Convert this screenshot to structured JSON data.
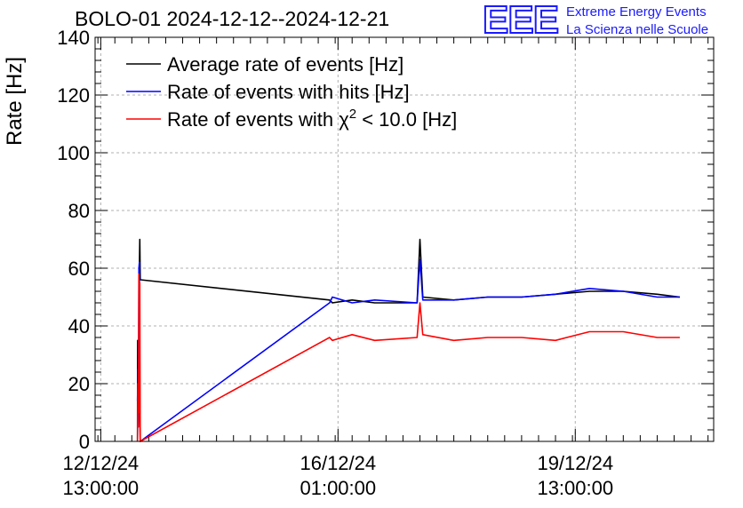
{
  "chart_data": {
    "type": "line",
    "title": "BOLO-01 2024-12-12--2024-12-21",
    "xlabel": "",
    "ylabel": "Rate [Hz]",
    "ylim": [
      0,
      140
    ],
    "y_ticks": [
      0,
      20,
      40,
      60,
      80,
      100,
      120,
      140
    ],
    "xlim": [
      "2024-12-12 11:00",
      "2024-12-21 14:00"
    ],
    "x_ticks": [
      {
        "x": "2024-12-12 13:00",
        "label1": "12/12/24",
        "label2": "13:00:00"
      },
      {
        "x": "2024-12-16 01:00",
        "label1": "16/12/24",
        "label2": "01:00:00"
      },
      {
        "x": "2024-12-19 13:00",
        "label1": "19/12/24",
        "label2": "13:00:00"
      }
    ],
    "grid": true,
    "legend_position": "top-left",
    "series": [
      {
        "name": "Average rate of events [Hz]",
        "color": "#000000",
        "points": [
          [
            "2024-12-13 02:00",
            0
          ],
          [
            "2024-12-13 02:05",
            35
          ],
          [
            "2024-12-13 02:10",
            5
          ],
          [
            "2024-12-13 02:20",
            30
          ],
          [
            "2024-12-13 02:30",
            12
          ],
          [
            "2024-12-13 02:40",
            60
          ],
          [
            "2024-12-13 02:50",
            70
          ],
          [
            "2024-12-13 03:00",
            56
          ],
          [
            "2024-12-15 22:00",
            49
          ],
          [
            "2024-12-15 23:00",
            48
          ],
          [
            "2024-12-16 06:00",
            49
          ],
          [
            "2024-12-16 14:00",
            48
          ],
          [
            "2024-12-17 05:00",
            48
          ],
          [
            "2024-12-17 06:00",
            70
          ],
          [
            "2024-12-17 07:00",
            50
          ],
          [
            "2024-12-17 18:00",
            49
          ],
          [
            "2024-12-18 06:00",
            50
          ],
          [
            "2024-12-18 18:00",
            50
          ],
          [
            "2024-12-19 06:00",
            51
          ],
          [
            "2024-12-19 18:00",
            52
          ],
          [
            "2024-12-20 06:00",
            52
          ],
          [
            "2024-12-20 18:00",
            51
          ],
          [
            "2024-12-21 02:00",
            50
          ]
        ]
      },
      {
        "name": "Rate of events with hits [Hz]",
        "color": "#0000ff",
        "points": [
          [
            "2024-12-13 02:00",
            14
          ],
          [
            "2024-12-13 02:10",
            25
          ],
          [
            "2024-12-13 02:20",
            11
          ],
          [
            "2024-12-13 02:30",
            60
          ],
          [
            "2024-12-13 02:40",
            62
          ],
          [
            "2024-12-13 02:45",
            12
          ],
          [
            "2024-12-13 03:00",
            0
          ],
          [
            "2024-12-15 22:00",
            48
          ],
          [
            "2024-12-15 23:00",
            50
          ],
          [
            "2024-12-16 06:00",
            48
          ],
          [
            "2024-12-16 14:00",
            49
          ],
          [
            "2024-12-17 05:00",
            48
          ],
          [
            "2024-12-17 06:00",
            63
          ],
          [
            "2024-12-17 07:00",
            49
          ],
          [
            "2024-12-17 18:00",
            49
          ],
          [
            "2024-12-18 06:00",
            50
          ],
          [
            "2024-12-18 18:00",
            50
          ],
          [
            "2024-12-19 06:00",
            51
          ],
          [
            "2024-12-19 18:00",
            53
          ],
          [
            "2024-12-20 06:00",
            52
          ],
          [
            "2024-12-20 18:00",
            50
          ],
          [
            "2024-12-21 02:00",
            50
          ]
        ]
      },
      {
        "name": "Rate of events with χ² < 10.0 [Hz]",
        "color": "#ff0000",
        "points": [
          [
            "2024-12-13 02:00",
            0
          ],
          [
            "2024-12-13 02:10",
            20
          ],
          [
            "2024-12-13 02:20",
            5
          ],
          [
            "2024-12-13 02:30",
            58
          ],
          [
            "2024-12-13 02:40",
            10
          ],
          [
            "2024-12-13 02:50",
            55
          ],
          [
            "2024-12-13 03:00",
            0
          ],
          [
            "2024-12-15 22:00",
            36
          ],
          [
            "2024-12-15 23:00",
            35
          ],
          [
            "2024-12-16 06:00",
            37
          ],
          [
            "2024-12-16 14:00",
            35
          ],
          [
            "2024-12-17 05:00",
            36
          ],
          [
            "2024-12-17 06:00",
            48
          ],
          [
            "2024-12-17 07:00",
            37
          ],
          [
            "2024-12-17 18:00",
            35
          ],
          [
            "2024-12-18 06:00",
            36
          ],
          [
            "2024-12-18 18:00",
            36
          ],
          [
            "2024-12-19 06:00",
            35
          ],
          [
            "2024-12-19 18:00",
            38
          ],
          [
            "2024-12-20 06:00",
            38
          ],
          [
            "2024-12-20 18:00",
            36
          ],
          [
            "2024-12-21 02:00",
            36
          ]
        ]
      }
    ],
    "legend": [
      {
        "text": "Average rate of events [Hz]",
        "color": "#000000"
      },
      {
        "text": "Rate of events with hits [Hz]",
        "color": "#0000ff"
      },
      {
        "pre": "Rate of events with χ",
        "sup": "2",
        "post": " < 10.0 [Hz]",
        "color": "#ff0000"
      }
    ]
  },
  "logo": {
    "mark": "EEE",
    "line1": "Extreme Energy Events",
    "line2": "La Scienza nelle Scuole",
    "color": "#1a1aff"
  }
}
